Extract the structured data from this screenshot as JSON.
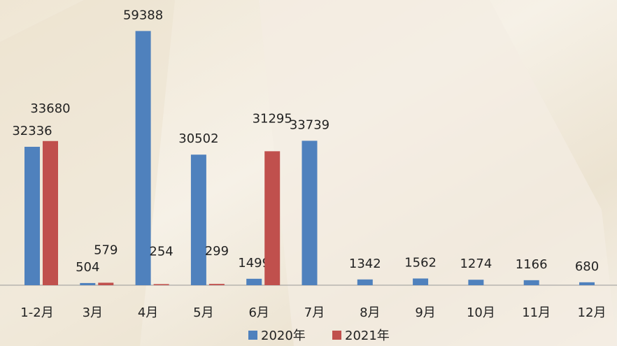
{
  "chart_data": {
    "type": "bar",
    "categories": [
      "1-2月",
      "3月",
      "4月",
      "5月",
      "6月",
      "7月",
      "8月",
      "9月",
      "10月",
      "11月",
      "12月"
    ],
    "series": [
      {
        "name": "2020年",
        "color": "#4f81bd",
        "values": [
          32336,
          504,
          59388,
          30502,
          1499,
          33739,
          1342,
          1562,
          1274,
          1166,
          680
        ]
      },
      {
        "name": "2021年",
        "color": "#c0504d",
        "values": [
          33680,
          579,
          254,
          299,
          31295,
          null,
          null,
          null,
          null,
          null,
          null
        ]
      }
    ],
    "ylim": [
      0,
      65000
    ],
    "legend": "bottom"
  }
}
